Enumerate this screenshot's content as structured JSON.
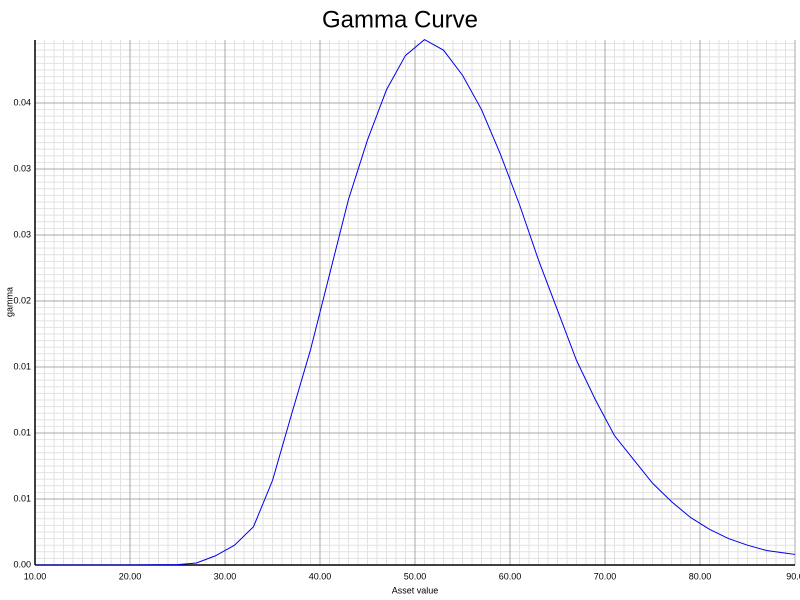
{
  "chart_data": {
    "type": "line",
    "title": "Gamma Curve",
    "x_label": "Asset value",
    "y_label": "gamma",
    "x": [
      10,
      15,
      20,
      25,
      27,
      29,
      31,
      33,
      35,
      37,
      39,
      41,
      43,
      45,
      47,
      49,
      51,
      53,
      55,
      57,
      59,
      61,
      63,
      65,
      67,
      69,
      71,
      73,
      75,
      77,
      79,
      81,
      83,
      85,
      87,
      89,
      90
    ],
    "series": [
      {
        "name": "gamma",
        "color": "#0000ee",
        "values": [
          0,
          0,
          0,
          3e-05,
          0.00015,
          0.0007,
          0.0015,
          0.0029,
          0.0064,
          0.0114,
          0.0163,
          0.022,
          0.0277,
          0.0322,
          0.036,
          0.0386,
          0.0398,
          0.039,
          0.0371,
          0.0345,
          0.0311,
          0.0273,
          0.0231,
          0.0193,
          0.0155,
          0.0125,
          0.0098,
          0.008,
          0.0062,
          0.0048,
          0.0036,
          0.0027,
          0.002,
          0.0015,
          0.0011,
          0.0009,
          0.0008
        ]
      }
    ],
    "xlim": [
      10,
      90
    ],
    "xticks": [
      {
        "value": 10,
        "label": "10.00"
      },
      {
        "value": 20,
        "label": "20.00"
      },
      {
        "value": 30,
        "label": "30.00"
      },
      {
        "value": 40,
        "label": "40.00"
      },
      {
        "value": 50,
        "label": "50.00"
      },
      {
        "value": 60,
        "label": "60.00"
      },
      {
        "value": 70,
        "label": "70.00"
      },
      {
        "value": 80,
        "label": "80.00"
      },
      {
        "value": 90,
        "label": "90.0"
      }
    ],
    "ylim": [
      0,
      0.03977
    ],
    "yticks": [
      {
        "value": 0,
        "label": "0.00"
      },
      {
        "value": 0.005,
        "label": "0.01"
      },
      {
        "value": 0.01,
        "label": "0.01"
      },
      {
        "value": 0.015,
        "label": "0.01"
      },
      0.02,
      {
        "value": 0.025,
        "label": "0.03"
      },
      0.03,
      {
        "value": 0.035,
        "label": "0.04"
      }
    ],
    "grid": true,
    "minor_grid": true
  }
}
